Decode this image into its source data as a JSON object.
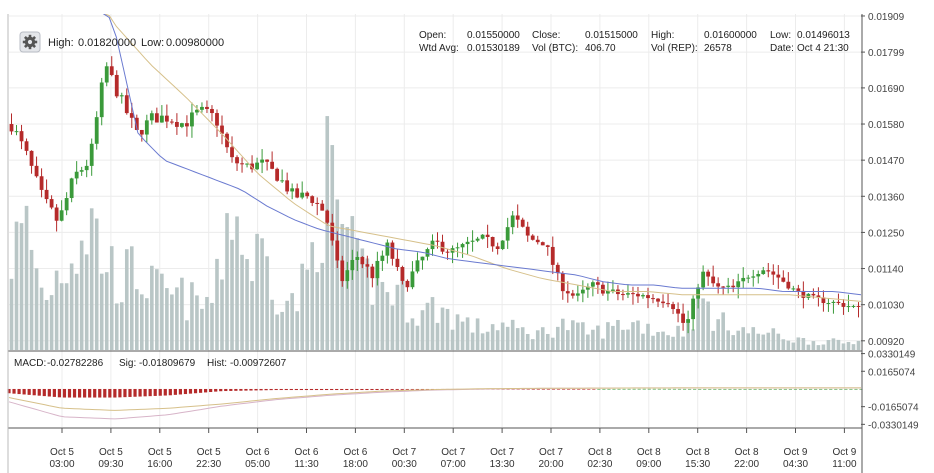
{
  "header": {
    "high_label": "High:",
    "high_value": "0.01820000",
    "low_label": "Low:",
    "low_value": "0.00980000",
    "settings_icon": "gear-icon"
  },
  "ohlc_info": {
    "open_label": "Open:",
    "open_value": "0.01550000",
    "close_label": "Close:",
    "close_value": "0.01515000",
    "high_label": "High:",
    "high_value": "0.01600000",
    "low_label": "Low:",
    "low_value": "0.01496013",
    "wtd_label": "Wtd Avg:",
    "wtd_value": "0.01530189",
    "volbtc_label": "Vol (BTC):",
    "volbtc_value": "406.70",
    "volrep_label": "Vol (REP):",
    "volrep_value": "26578",
    "date_label": "Date:",
    "date_value": "Oct 4 21:30"
  },
  "macd_info": {
    "macd_label": "MACD:",
    "macd_value": "-0.02782286",
    "sig_label": "Sig:",
    "sig_value": "-0.01809679",
    "hist_label": "Hist:",
    "hist_value": "-0.00972607"
  },
  "colors": {
    "up": "#3a9a3a",
    "down": "#b52a2a",
    "volume": "#b9c6c6",
    "ema_fast": "#6a7ad0",
    "ema_slow": "#d6c08a",
    "macd_line": "#d7b4c8",
    "signal_line": "#d6c08a",
    "grid": "#ececec"
  },
  "chart_data": [
    {
      "type": "candlestick",
      "price_axis": {
        "ylim": [
          0.00892,
          0.01915
        ],
        "ticks": [
          "0.01909",
          "0.01799",
          "0.01690",
          "0.01580",
          "0.01470",
          "0.01360",
          "0.01250",
          "0.01140",
          "0.01030",
          "0.00920"
        ]
      },
      "x_ticks": [
        {
          "date": "Oct 5",
          "time": "03:00"
        },
        {
          "date": "Oct 5",
          "time": "09:30"
        },
        {
          "date": "Oct 5",
          "time": "16:00"
        },
        {
          "date": "Oct 5",
          "time": "22:30"
        },
        {
          "date": "Oct 6",
          "time": "05:00"
        },
        {
          "date": "Oct 6",
          "time": "11:30"
        },
        {
          "date": "Oct 6",
          "time": "18:00"
        },
        {
          "date": "Oct 7",
          "time": "00:30"
        },
        {
          "date": "Oct 7",
          "time": "07:00"
        },
        {
          "date": "Oct 7",
          "time": "13:30"
        },
        {
          "date": "Oct 7",
          "time": "20:00"
        },
        {
          "date": "Oct 8",
          "time": "02:30"
        },
        {
          "date": "Oct 8",
          "time": "09:00"
        },
        {
          "date": "Oct 8",
          "time": "15:30"
        },
        {
          "date": "Oct 8",
          "time": "22:00"
        },
        {
          "date": "Oct 9",
          "time": "04:30"
        },
        {
          "date": "Oct 9",
          "time": "11:00"
        }
      ],
      "price_anchors": [
        0.0158,
        0.0148,
        0.0135,
        0.0128,
        0.0142,
        0.0147,
        0.0176,
        0.0165,
        0.0155,
        0.016,
        0.016,
        0.0158,
        0.0162,
        0.016,
        0.0147,
        0.0145,
        0.0146,
        0.0142,
        0.0136,
        0.0136,
        0.0131,
        0.011,
        0.0118,
        0.0112,
        0.0121,
        0.0108,
        0.0116,
        0.0122,
        0.0119,
        0.0121,
        0.0123,
        0.0121,
        0.013,
        0.0123,
        0.0122,
        0.0109,
        0.0105,
        0.0109,
        0.0107,
        0.0106,
        0.0106,
        0.0105,
        0.0104,
        0.0096,
        0.0113,
        0.0108,
        0.0108,
        0.0112,
        0.0114,
        0.0111,
        0.0107,
        0.0105,
        0.0104,
        0.0103,
        0.0102
      ],
      "volume_profile": [
        0.55,
        0.7,
        0.3,
        0.45,
        0.6,
        0.75,
        0.5,
        0.4,
        0.45,
        0.35,
        0.3,
        0.3,
        0.25,
        0.3,
        0.9,
        0.5,
        0.55,
        0.35,
        0.25,
        0.45,
        1.0,
        0.75,
        0.45,
        0.4,
        0.35,
        0.3,
        0.2,
        0.25,
        0.2,
        0.15,
        0.12,
        0.15,
        0.12,
        0.1,
        0.1,
        0.15,
        0.12,
        0.1,
        0.12,
        0.15,
        0.15,
        0.12,
        0.1,
        0.12,
        0.3,
        0.15,
        0.15,
        0.1,
        0.1,
        0.08,
        0.06,
        0.05,
        0.05,
        0.04,
        0.05
      ],
      "ema_fast_anchors": [
        0.021,
        0.0205,
        0.0199,
        0.0194,
        0.019,
        0.0155,
        0.0147,
        0.0144,
        0.0141,
        0.0138,
        0.0133,
        0.0129,
        0.0126,
        0.0124,
        0.0122,
        0.012,
        0.0119,
        0.0117,
        0.0116,
        0.0115,
        0.0114,
        0.0113,
        0.0112,
        0.011,
        0.0109,
        0.0109,
        0.0108,
        0.0108,
        0.0108,
        0.0108,
        0.0107,
        0.0107,
        0.0107,
        0.0106
      ],
      "ema_slow_anchors": [
        0.026,
        0.023,
        0.0205,
        0.0188,
        0.0176,
        0.0166,
        0.0155,
        0.0143,
        0.0134,
        0.0127,
        0.0125,
        0.0123,
        0.0121,
        0.0118,
        0.0114,
        0.0111,
        0.0109,
        0.0107,
        0.0107,
        0.0106,
        0.0106,
        0.0106,
        0.0106,
        0.0105,
        0.0104
      ]
    },
    {
      "type": "macd",
      "ticks": [
        "0.0330149",
        "0.0165074",
        "-0.0165074",
        "-0.0330149"
      ],
      "ylim": [
        -0.0355,
        0.0345
      ],
      "macd_anchors": [
        -0.012,
        -0.026,
        -0.028,
        -0.024,
        -0.016,
        -0.01,
        -0.006,
        -0.003,
        -0.001,
        0.0,
        0.0005,
        0.0008,
        0.001,
        0.001,
        0.001,
        0.001,
        0.001
      ],
      "signal_anchors": [
        -0.008,
        -0.018,
        -0.02,
        -0.018,
        -0.014,
        -0.009,
        -0.005,
        -0.002,
        -0.0005,
        0.0003,
        0.0006,
        0.0008,
        0.0009,
        0.001,
        0.001,
        0.001,
        0.001
      ]
    }
  ]
}
